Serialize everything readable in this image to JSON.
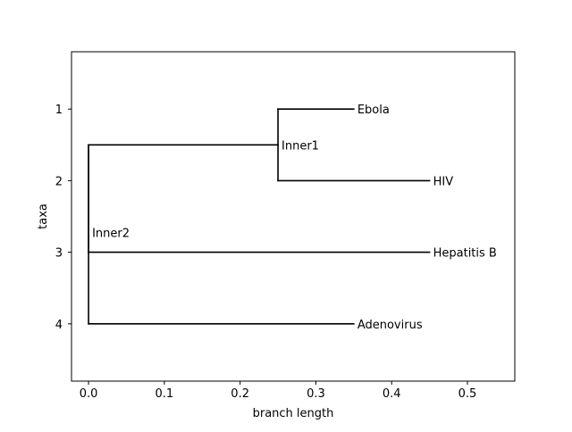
{
  "chart_data": {
    "type": "dendrogram",
    "title": "",
    "xlabel": "branch length",
    "ylabel": "taxa",
    "xlim": [
      -0.0225,
      0.5625
    ],
    "ylim": [
      4.8,
      0.2
    ],
    "x_ticks": [
      0.0,
      0.1,
      0.2,
      0.3,
      0.4,
      0.5
    ],
    "x_tick_labels": [
      "0.0",
      "0.1",
      "0.2",
      "0.3",
      "0.4",
      "0.5"
    ],
    "y_ticks": [
      1,
      2,
      3,
      4
    ],
    "y_tick_labels": [
      "1",
      "2",
      "3",
      "4"
    ],
    "grid": false,
    "line_color": "#000000",
    "nodes": [
      {
        "id": "root",
        "label": "",
        "x": 0.0,
        "y": 1.5
      },
      {
        "id": "inner1",
        "label": "Inner1",
        "x": 0.25,
        "y": 1.5
      },
      {
        "id": "inner2",
        "label": "Inner2",
        "x": 0.0,
        "y": 3.0
      },
      {
        "id": "ebola",
        "label": "Ebola",
        "x": 0.35,
        "y": 1
      },
      {
        "id": "hiv",
        "label": "HIV",
        "x": 0.45,
        "y": 2
      },
      {
        "id": "hepatitis_b",
        "label": "Hepatitis B",
        "x": 0.45,
        "y": 3
      },
      {
        "id": "adenovirus",
        "label": "Adenovirus",
        "x": 0.35,
        "y": 4
      }
    ],
    "edges": [
      {
        "parent": "root",
        "child": "inner1"
      },
      {
        "parent": "inner1",
        "child": "ebola"
      },
      {
        "parent": "inner1",
        "child": "hiv"
      },
      {
        "parent": "root",
        "child": "inner2"
      },
      {
        "parent": "inner2",
        "child": "hepatitis_b"
      },
      {
        "parent": "root",
        "child": "adenovirus"
      }
    ]
  }
}
